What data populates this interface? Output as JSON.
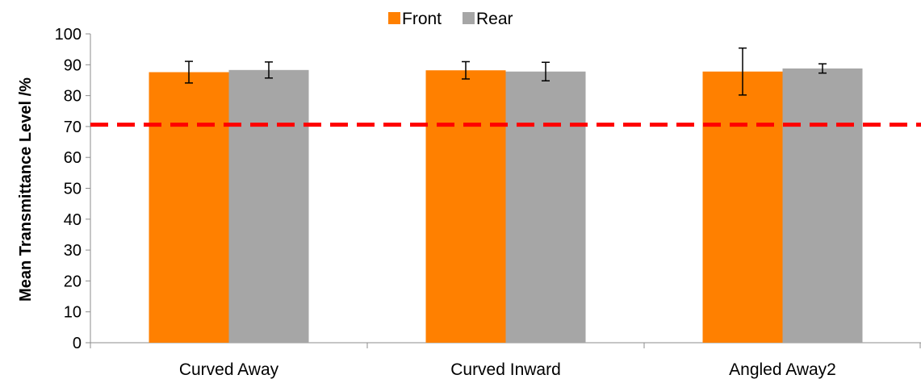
{
  "chart_data": {
    "type": "bar",
    "title": "",
    "xlabel": "",
    "ylabel": "Mean Transmittance Level /%",
    "ylim": [
      0,
      100
    ],
    "yticks": [
      0,
      10,
      20,
      30,
      40,
      50,
      60,
      70,
      80,
      90,
      100
    ],
    "categories": [
      "Curved Away",
      "Curved Inward",
      "Angled Away2"
    ],
    "series": [
      {
        "name": "Front",
        "color": "#ff8000",
        "values": [
          87.6,
          88.2,
          87.8
        ],
        "err_low": [
          84.1,
          85.4,
          80.2
        ],
        "err_high": [
          91.1,
          91.0,
          95.4
        ]
      },
      {
        "name": "Rear",
        "color": "#a6a6a6",
        "values": [
          88.3,
          87.8,
          88.8
        ],
        "err_low": [
          85.7,
          84.8,
          87.3
        ],
        "err_high": [
          90.9,
          90.8,
          90.3
        ]
      }
    ],
    "reference_line": {
      "value": 70.6,
      "color": "#ff0000",
      "style": "dashed"
    },
    "legend": {
      "position": "top-center"
    },
    "grid": false
  }
}
